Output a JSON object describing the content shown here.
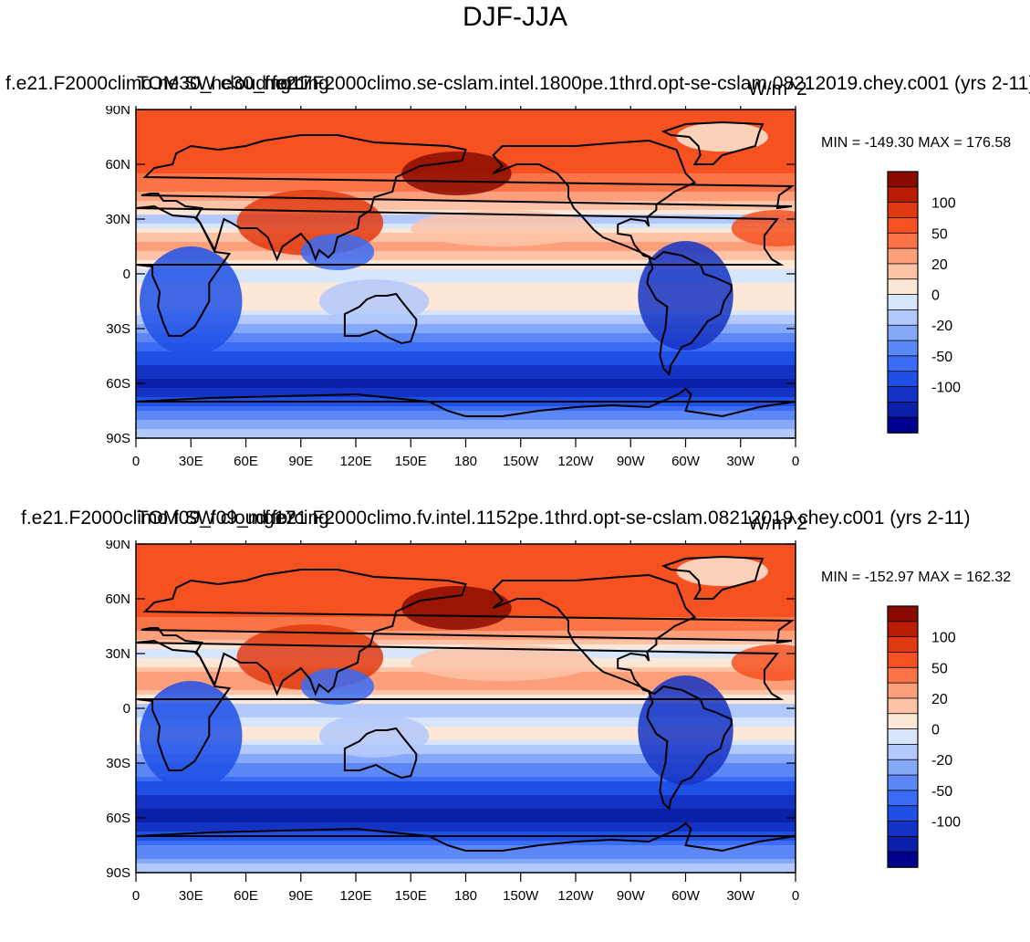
{
  "figure": {
    "title": "DJF-JJA"
  },
  "palette": [
    "#00008f",
    "#0a20a8",
    "#1433c4",
    "#1e50e6",
    "#3a6cf5",
    "#5c88f7",
    "#86a8f9",
    "#b3c8fb",
    "#d7e6fd",
    "#fde7d6",
    "#fdc3a7",
    "#fc9f7a",
    "#fb7447",
    "#f65120",
    "#e03a10",
    "#b81d04",
    "#8a0a00"
  ],
  "chart_data": [
    {
      "type": "heatmap",
      "case_name": "f.e21.F2000climo.ne30_ne30_mg17",
      "model_name": "f.e21.F2000climo.se-cslam.intel.1800pe.1thrd.opt-se-cslam.08212019.chey.c001 (yrs 2-11)",
      "variable": "TOM SW cloud forcing",
      "units": "W/m^2",
      "minmax": "MIN = -149.30 MAX = 176.58",
      "min": -149.3,
      "max": 176.58,
      "xlabels": [
        "0",
        "30E",
        "60E",
        "90E",
        "120E",
        "150E",
        "180",
        "150W",
        "120W",
        "90W",
        "60W",
        "30W",
        "0"
      ],
      "ylabels": [
        "90N",
        "60N",
        "30N",
        "0",
        "30S",
        "60S",
        "90S"
      ],
      "colorbar_labels": [
        "100",
        "50",
        "20",
        "0",
        "-20",
        "-50",
        "-100"
      ],
      "bands": [
        {
          "lat": 90,
          "value": 60
        },
        {
          "lat": 75,
          "value": 70
        },
        {
          "lat": 60,
          "value": 55
        },
        {
          "lat": 45,
          "value": 40
        },
        {
          "lat": 30,
          "value": -10
        },
        {
          "lat": 15,
          "value": 25
        },
        {
          "lat": 0,
          "value": -5
        },
        {
          "lat": -15,
          "value": 10
        },
        {
          "lat": -30,
          "value": -25
        },
        {
          "lat": -45,
          "value": -70
        },
        {
          "lat": -60,
          "value": -110
        },
        {
          "lat": -75,
          "value": -45
        },
        {
          "lat": -90,
          "value": -5
        }
      ]
    },
    {
      "type": "heatmap",
      "case_name": "f.e21.F2000climo.f09_f09_mg17",
      "model_name": "f.e21.F2000climo.fv.intel.1152pe.1thrd.opt-se-cslam.08212019.chey.c001 (yrs 2-11)",
      "variable": "TOM SW cloud forcing",
      "units": "W/m^2",
      "minmax": "MIN = -152.97 MAX = 162.32",
      "min": -152.97,
      "max": 162.32,
      "xlabels": [
        "0",
        "30E",
        "60E",
        "90E",
        "120E",
        "150E",
        "180",
        "150W",
        "120W",
        "90W",
        "60W",
        "30W",
        "0"
      ],
      "ylabels": [
        "90N",
        "60N",
        "30N",
        "0",
        "30S",
        "60S",
        "90S"
      ],
      "colorbar_labels": [
        "100",
        "50",
        "20",
        "0",
        "-20",
        "-50",
        "-100"
      ],
      "bands": [
        {
          "lat": 90,
          "value": 60
        },
        {
          "lat": 75,
          "value": 70
        },
        {
          "lat": 60,
          "value": 60
        },
        {
          "lat": 45,
          "value": 45
        },
        {
          "lat": 30,
          "value": -5
        },
        {
          "lat": 15,
          "value": 30
        },
        {
          "lat": 0,
          "value": -10
        },
        {
          "lat": -15,
          "value": 5
        },
        {
          "lat": -30,
          "value": -30
        },
        {
          "lat": -45,
          "value": -75
        },
        {
          "lat": -60,
          "value": -115
        },
        {
          "lat": -75,
          "value": -50
        },
        {
          "lat": -90,
          "value": -5
        }
      ]
    }
  ]
}
